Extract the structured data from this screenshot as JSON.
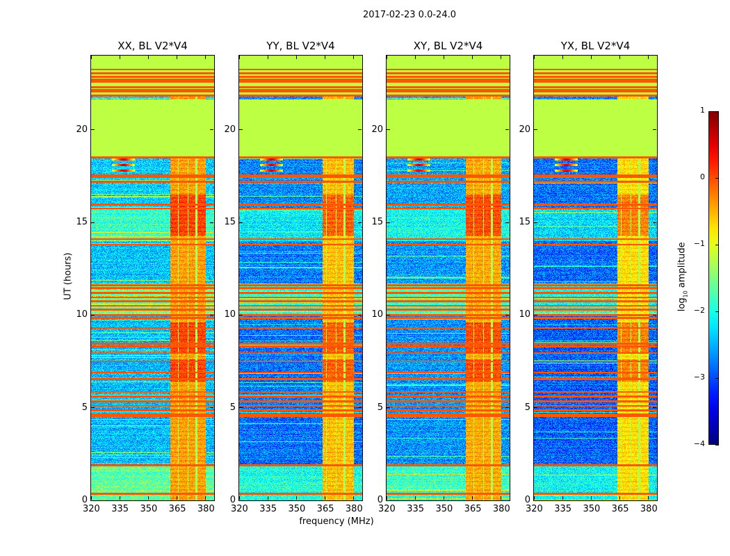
{
  "chart_data": {
    "type": "heatmap",
    "title": "2017-02-23 0.0-24.0",
    "xlabel": "frequency (MHz)",
    "ylabel": "UT (hours)",
    "xlim": [
      320,
      384.4
    ],
    "ylim": [
      0,
      24
    ],
    "xticks": [
      320,
      335,
      350,
      365,
      380
    ],
    "yticks": [
      0,
      5,
      10,
      15,
      20
    ],
    "colorbar": {
      "label_prefix": "log",
      "label_sub": "10",
      "label_suffix": " amplitude",
      "colormap": "jet",
      "range": [
        -4,
        1
      ],
      "ticks": [
        1,
        0,
        -1,
        -2,
        -3,
        -4
      ]
    },
    "panels": [
      {
        "title": "XX, BL V2*V4",
        "background_offset": 0.35,
        "rfi_level": -0.45,
        "rfi_start_MHz": 361.5
      },
      {
        "title": "YY, BL V2*V4",
        "background_offset": 0.0,
        "rfi_level": -0.6,
        "rfi_start_MHz": 363.5
      },
      {
        "title": "XY, BL V2*V4",
        "background_offset": 0.15,
        "rfi_level": -0.5,
        "rfi_start_MHz": 361.5
      },
      {
        "title": "YX, BL V2*V4",
        "background_offset": -0.1,
        "rfi_level": -0.75,
        "rfi_start_MHz": 363.5
      }
    ],
    "flagged_time_ranges_hours": [
      [
        18.55,
        21.65,
        -1.2
      ],
      [
        21.8,
        24.0,
        -1.2
      ]
    ],
    "saturated_lines_hours": [
      0.35,
      1.9,
      4.55,
      4.65,
      4.85,
      5.1,
      5.35,
      5.6,
      5.85,
      6.55,
      6.9,
      7.5,
      7.95,
      8.3,
      8.45,
      9.3,
      9.85,
      10.0,
      10.3,
      10.5,
      10.75,
      10.95,
      11.2,
      11.45,
      11.6,
      13.8,
      14.1,
      15.75,
      15.95,
      17.2,
      17.45,
      17.55,
      18.5,
      21.85,
      22.05,
      22.15,
      22.3,
      22.6,
      22.7,
      22.85,
      23.05,
      23.25
    ],
    "background_bands_hours": [
      [
        0,
        1.9,
        -2.0
      ],
      [
        1.9,
        6.5,
        -2.8
      ],
      [
        6.5,
        10.0,
        -2.8
      ],
      [
        10.0,
        11.7,
        -1.9
      ],
      [
        11.7,
        14.0,
        -2.75
      ],
      [
        14.0,
        15.7,
        -2.2
      ],
      [
        15.7,
        18.55,
        -2.7
      ]
    ],
    "rfi_subbands_MHz": [
      [
        361.5,
        365.5
      ],
      [
        366.0,
        370.5
      ],
      [
        371.0,
        374.5
      ],
      [
        375.5,
        380.0
      ]
    ],
    "rfi_hot_periods_hours": [
      [
        6.4,
        7.6
      ],
      [
        8.0,
        9.6
      ],
      [
        14.3,
        16.5
      ]
    ],
    "point_sources": [
      {
        "freq_MHz": 337,
        "time_h": 18.1
      },
      {
        "freq_MHz": 337,
        "time_h": 17.8
      },
      {
        "freq_MHz": 337,
        "time_h": 18.4
      }
    ]
  }
}
